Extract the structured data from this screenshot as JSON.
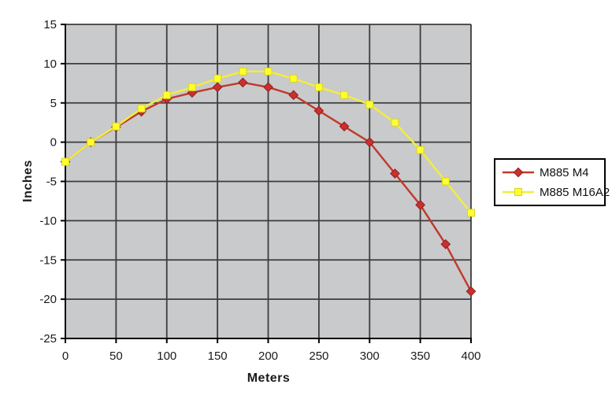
{
  "chart_data": {
    "type": "line",
    "title": "",
    "xlabel": "Meters",
    "ylabel": "Inches",
    "xlim": [
      0,
      400
    ],
    "ylim": [
      -25,
      15
    ],
    "x_ticks": [
      0,
      50,
      100,
      150,
      200,
      250,
      300,
      350,
      400
    ],
    "y_ticks": [
      15,
      10,
      5,
      0,
      -5,
      -10,
      -15,
      -20,
      -25
    ],
    "grid": true,
    "legend_position": "right",
    "colors": {
      "plot_background": "#c9cacb",
      "gridline": "#3c3c3c",
      "axis": "#000000",
      "tick_text": "#1a1a1a",
      "series_m4": "#c0392b",
      "series_m4_marker": "#cc2f2f",
      "series_m16a2": "#f2ee3c",
      "series_m16a2_marker": "#ffff2e"
    },
    "x": [
      0,
      25,
      50,
      75,
      100,
      125,
      150,
      175,
      200,
      225,
      250,
      275,
      300,
      325,
      350,
      375,
      400
    ],
    "series": [
      {
        "name": "M885 M4",
        "marker": "diamond",
        "color": "#c0392b",
        "marker_color": "#cc2f2f",
        "values": [
          -2.5,
          0,
          1.9,
          3.9,
          5.5,
          6.3,
          7.0,
          7.6,
          7.0,
          6.0,
          4.0,
          2.0,
          0.0,
          -4.0,
          -8.0,
          -13.0,
          -19.0
        ]
      },
      {
        "name": "M885 M16A2",
        "marker": "square",
        "color": "#f2ee3c",
        "marker_color": "#ffff2e",
        "values": [
          -2.5,
          0,
          2.0,
          4.3,
          6.0,
          7.0,
          8.1,
          9.0,
          9.0,
          8.1,
          7.0,
          6.0,
          4.8,
          2.5,
          -1.0,
          -5.0,
          -9.0
        ]
      }
    ]
  }
}
